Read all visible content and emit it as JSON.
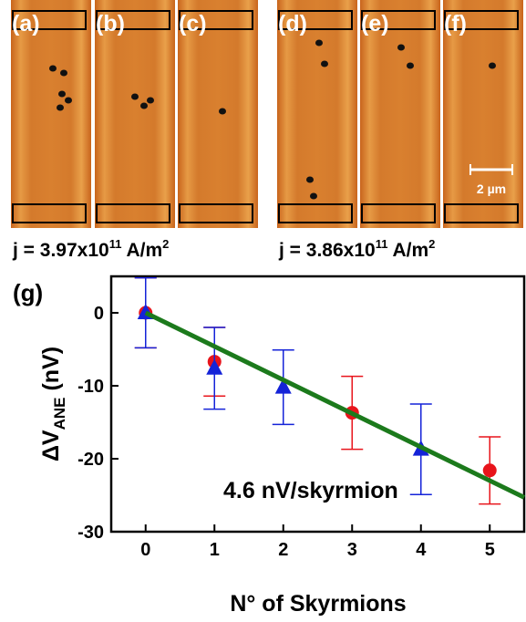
{
  "panels": [
    "(a)",
    "(b)",
    "(c)",
    "(d)",
    "(e)",
    "(f)"
  ],
  "scale_bar": "2 µm",
  "current_labels": [
    {
      "text": "j = 3.97x10",
      "exp": "11",
      "unit": " A/m",
      "unit_exp": "2"
    },
    {
      "text": "j = 3.86x10",
      "exp": "11",
      "unit": " A/m",
      "unit_exp": "2"
    }
  ],
  "chart_data": {
    "type": "scatter",
    "panel_label": "(g)",
    "xlabel": "N° of Skyrmions",
    "ylabel": "ΔV",
    "ylabel_sub": "ANE",
    "ylabel_unit": " (nV)",
    "annotation": "4.6 nV/skyrmion",
    "xlim": [
      -0.5,
      5.5
    ],
    "ylim": [
      -30,
      5
    ],
    "xticks": [
      0,
      1,
      2,
      3,
      4,
      5
    ],
    "yticks": [
      -30,
      -20,
      -10,
      0
    ],
    "series": [
      {
        "marker": "circle",
        "color": "#e8141b",
        "x": [
          0,
          1,
          3,
          5
        ],
        "values": [
          0,
          -6.7,
          -13.7,
          -21.6
        ],
        "errors": [
          4.8,
          4.7,
          5,
          4.6
        ]
      },
      {
        "marker": "triangle",
        "color": "#1423d8",
        "x": [
          0,
          1,
          2,
          4
        ],
        "values": [
          0,
          -7.6,
          -10.2,
          -18.7
        ],
        "errors": [
          4.8,
          5.6,
          5.1,
          6.2
        ]
      }
    ],
    "fit": {
      "color": "#1c7a1c",
      "x": [
        0,
        5.5
      ],
      "values": [
        0,
        -25.3
      ]
    }
  }
}
